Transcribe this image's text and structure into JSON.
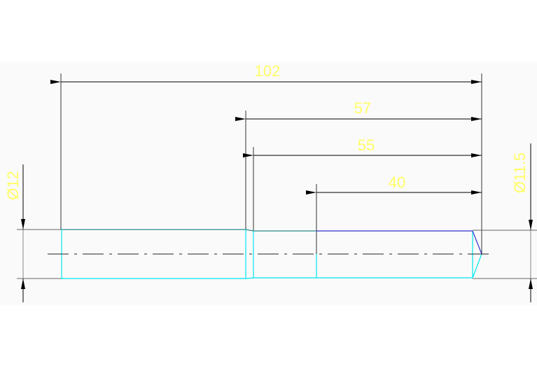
{
  "drawing": {
    "dimensions": {
      "overall_length": "102",
      "length_a": "57",
      "length_b": "55",
      "length_c": "40",
      "diameter_left": "Ø12",
      "diameter_right": "Ø11.5"
    },
    "colors": {
      "dimension_text": "#ffff66",
      "dimension_lines": "#000000",
      "outline_cyan": "#00ffff",
      "outline_blue": "#3333cc",
      "extension_gray": "#808080"
    }
  }
}
